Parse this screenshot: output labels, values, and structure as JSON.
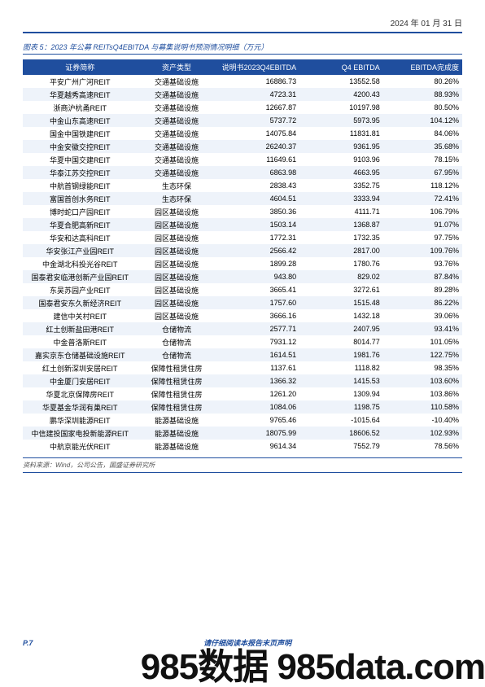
{
  "date": "2024 年 01 月 31 日",
  "figure_title": "图表 5：2023 年公募 REITsQ4EBITDA 与募集说明书预测情况明细（万元）",
  "table": {
    "columns": [
      "证券简称",
      "资产类型",
      "说明书2023Q4EBITDA",
      "Q4 EBITDA",
      "EBITDA完成度"
    ],
    "rows": [
      [
        "平安广州广河REIT",
        "交通基础设施",
        "16886.73",
        "13552.58",
        "80.26%"
      ],
      [
        "华夏越秀高速REIT",
        "交通基础设施",
        "4723.31",
        "4200.43",
        "88.93%"
      ],
      [
        "浙商沪杭甬REIT",
        "交通基础设施",
        "12667.87",
        "10197.98",
        "80.50%"
      ],
      [
        "中金山东高速REIT",
        "交通基础设施",
        "5737.72",
        "5973.95",
        "104.12%"
      ],
      [
        "国金中国铁建REIT",
        "交通基础设施",
        "14075.84",
        "11831.81",
        "84.06%"
      ],
      [
        "中金安徽交控REIT",
        "交通基础设施",
        "26240.37",
        "9361.95",
        "35.68%"
      ],
      [
        "华夏中国交建REIT",
        "交通基础设施",
        "11649.61",
        "9103.96",
        "78.15%"
      ],
      [
        "华泰江苏交控REIT",
        "交通基础设施",
        "6863.98",
        "4663.95",
        "67.95%"
      ],
      [
        "中航首钢绿能REIT",
        "生态环保",
        "2838.43",
        "3352.75",
        "118.12%"
      ],
      [
        "富国首创水务REIT",
        "生态环保",
        "4604.51",
        "3333.94",
        "72.41%"
      ],
      [
        "博时蛇口产园REIT",
        "园区基础设施",
        "3850.36",
        "4111.71",
        "106.79%"
      ],
      [
        "华夏合肥高新REIT",
        "园区基础设施",
        "1503.14",
        "1368.87",
        "91.07%"
      ],
      [
        "华安和达高科REIT",
        "园区基础设施",
        "1772.31",
        "1732.35",
        "97.75%"
      ],
      [
        "华安张江产业园REIT",
        "园区基础设施",
        "2566.42",
        "2817.00",
        "109.76%"
      ],
      [
        "中金湖北科投光谷REIT",
        "园区基础设施",
        "1899.28",
        "1780.76",
        "93.76%"
      ],
      [
        "国泰君安临港创新产业园REIT",
        "园区基础设施",
        "943.80",
        "829.02",
        "87.84%"
      ],
      [
        "东吴苏园产业REIT",
        "园区基础设施",
        "3665.41",
        "3272.61",
        "89.28%"
      ],
      [
        "国泰君安东久新经济REIT",
        "园区基础设施",
        "1757.60",
        "1515.48",
        "86.22%"
      ],
      [
        "建信中关村REIT",
        "园区基础设施",
        "3666.16",
        "1432.18",
        "39.06%"
      ],
      [
        "红土创新盐田港REIT",
        "仓储物流",
        "2577.71",
        "2407.95",
        "93.41%"
      ],
      [
        "中金普洛斯REIT",
        "仓储物流",
        "7931.12",
        "8014.77",
        "101.05%"
      ],
      [
        "嘉实京东仓储基础设施REIT",
        "仓储物流",
        "1614.51",
        "1981.76",
        "122.75%"
      ],
      [
        "红土创新深圳安居REIT",
        "保障性租赁住房",
        "1137.61",
        "1118.82",
        "98.35%"
      ],
      [
        "中金厦门安居REIT",
        "保障性租赁住房",
        "1366.32",
        "1415.53",
        "103.60%"
      ],
      [
        "华夏北京保障房REIT",
        "保障性租赁住房",
        "1261.20",
        "1309.94",
        "103.86%"
      ],
      [
        "华夏基金华润有巢REIT",
        "保障性租赁住房",
        "1084.06",
        "1198.75",
        "110.58%"
      ],
      [
        "鹏华深圳能源REIT",
        "能源基础设施",
        "9765.46",
        "-1015.64",
        "-10.40%"
      ],
      [
        "中信建投国家电投新能源REIT",
        "能源基础设施",
        "18075.99",
        "18606.52",
        "102.93%"
      ],
      [
        "中航京能光伏REIT",
        "能源基础设施",
        "9614.34",
        "7552.79",
        "78.56%"
      ]
    ],
    "header_bg": "#1f4e9e",
    "header_fg": "#ffffff",
    "row_alt_bg": "#eef3fa",
    "font_size": 9
  },
  "source_note": "资料来源：Wind，公司公告，国盛证券研究所",
  "footer": {
    "page": "P.7",
    "center": "请仔细阅读本报告末页声明"
  },
  "watermark": "985数据 985data.com"
}
